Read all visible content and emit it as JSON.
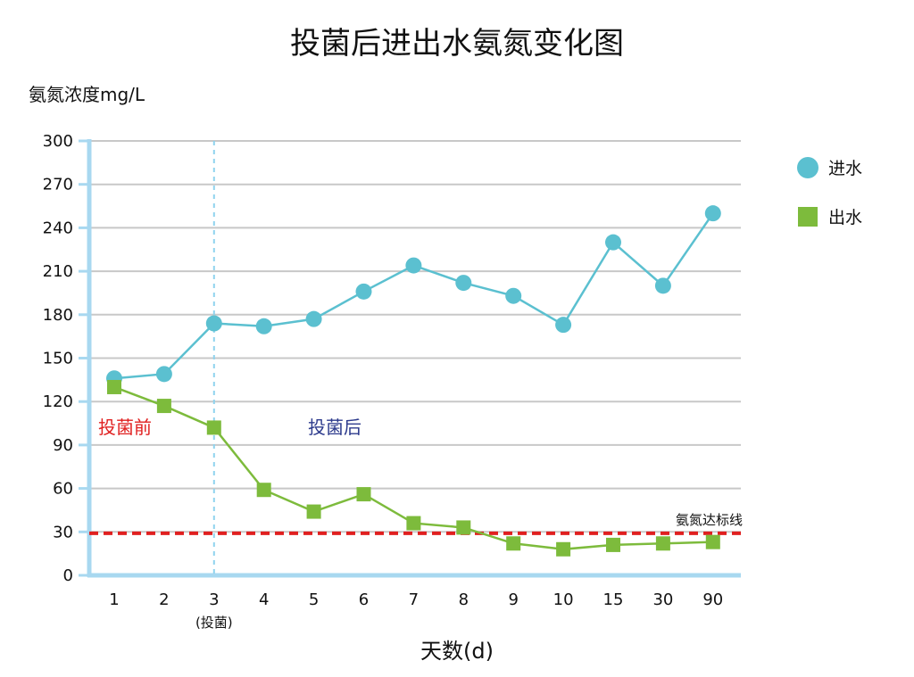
{
  "chart_data": {
    "type": "line",
    "title": "投菌后进出水氨氮变化图",
    "ylabel": "氨氮浓度mg/L",
    "xlabel": "天数(d)",
    "ylim": [
      0,
      300
    ],
    "yticks": [
      0,
      30,
      60,
      90,
      120,
      150,
      180,
      210,
      240,
      270,
      300
    ],
    "categories": [
      "1",
      "2",
      "3",
      "4",
      "5",
      "6",
      "7",
      "8",
      "9",
      "10",
      "15",
      "30",
      "90"
    ],
    "category_note": {
      "category": "3",
      "text": "(投菌)"
    },
    "series": [
      {
        "name": "进水",
        "color": "#5bc0d0",
        "marker": "circle",
        "values": [
          136,
          139,
          174,
          172,
          177,
          196,
          214,
          202,
          193,
          173,
          230,
          200,
          250
        ]
      },
      {
        "name": "出水",
        "color": "#7dbb3c",
        "marker": "square",
        "values": [
          130,
          117,
          102,
          59,
          44,
          56,
          36,
          33,
          22,
          18,
          21,
          22,
          23
        ]
      }
    ],
    "reference_line": {
      "value": 29,
      "label": "氨氮达标线",
      "color": "#e02020"
    },
    "marker_line": {
      "category": "3"
    },
    "region_labels": [
      {
        "text": "投菌前",
        "color": "#e02020"
      },
      {
        "text": "投菌后",
        "color": "#2c3a8c"
      }
    ],
    "legend_position": "top-right",
    "grid": true
  }
}
